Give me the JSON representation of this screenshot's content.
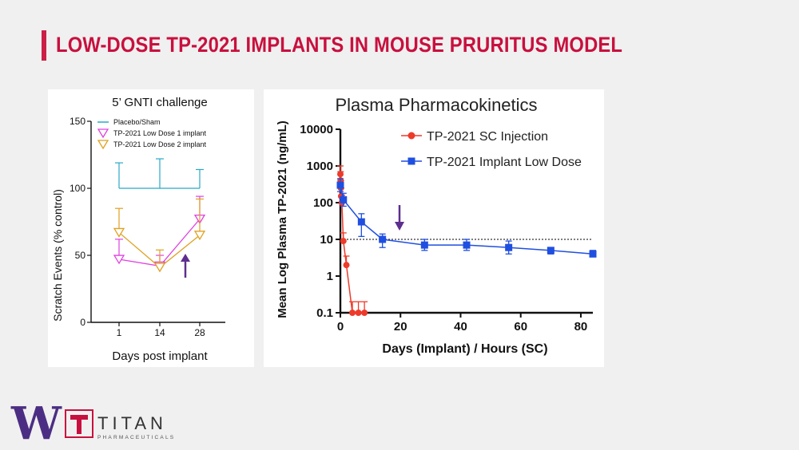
{
  "slide": {
    "title": "LOW-DOSE TP-2021 IMPLANTS IN MOUSE PRURITUS MODEL"
  },
  "colors": {
    "accent": "#c8103e",
    "placebo": "#2aa8c7",
    "low_dose_1": "#e040e0",
    "low_dose_2": "#e0a020",
    "sc": "#ee3a2a",
    "implant": "#1f4fe0",
    "arrow": "#5e2e8e"
  },
  "logos": {
    "uw": "W",
    "company": "TITAN",
    "company_sub": "PHARMACEUTICALS"
  },
  "chart_data": [
    {
      "type": "line",
      "title": "5’ GNTI challenge",
      "xlabel": "Days post implant",
      "ylabel": "Scratch Events (% control)",
      "categories": [
        "1",
        "14",
        "28"
      ],
      "ylim": [
        0,
        150
      ],
      "yticks": [
        "0",
        "50",
        "100",
        "150"
      ],
      "legend_position": "top-left",
      "series": [
        {
          "name": "Placebo/Sham",
          "values": [
            100,
            100,
            100
          ],
          "err_up": [
            119,
            122,
            114
          ]
        },
        {
          "name": "TP-2021 Low Dose 1 implant",
          "values": [
            47,
            42,
            77
          ],
          "err_up": [
            62,
            50,
            94
          ]
        },
        {
          "name": "TP-2021 Low Dose 2 implant",
          "values": [
            67,
            41,
            65
          ],
          "err_up": [
            85,
            54,
            92
          ]
        }
      ],
      "annotation": "upward arrow near day 28"
    },
    {
      "type": "line",
      "title": "Plasma Pharmacokinetics",
      "xlabel": "Days (Implant) / Hours (SC)",
      "ylabel": "Mean Log Plasma TP-2021 (ng/mL)",
      "yscale": "log",
      "ylim": [
        0.1,
        10000
      ],
      "yticks": [
        "0.1",
        "1",
        "10",
        "100",
        "1000",
        "10000"
      ],
      "xlim": [
        0,
        84
      ],
      "xticks": [
        "0",
        "20",
        "40",
        "60",
        "80"
      ],
      "reference_line": 10,
      "legend_position": "top-right",
      "series": [
        {
          "name": "TP-2021 SC Injection",
          "x": [
            0,
            0.08,
            0.17,
            0.25,
            0.5,
            1,
            2,
            4,
            6,
            8
          ],
          "y": [
            600,
            400,
            250,
            150,
            100,
            9,
            2,
            0.1,
            0.1,
            0.1
          ],
          "err_up": [
            1000,
            700,
            400,
            250,
            160,
            15,
            3.5,
            0.2,
            0.2,
            0.2
          ]
        },
        {
          "name": "TP-2021 Implant Low Dose",
          "x": [
            0,
            1,
            7,
            14,
            28,
            42,
            56,
            70,
            84
          ],
          "y": [
            300,
            120,
            30,
            10,
            7,
            7,
            6,
            5,
            4
          ],
          "err_up": [
            450,
            180,
            50,
            14,
            10,
            10,
            9,
            6,
            5
          ],
          "err_down": [
            200,
            80,
            12,
            6,
            5,
            5,
            4,
            4,
            3.5
          ]
        }
      ],
      "annotation": "downward arrow near day 20"
    }
  ]
}
